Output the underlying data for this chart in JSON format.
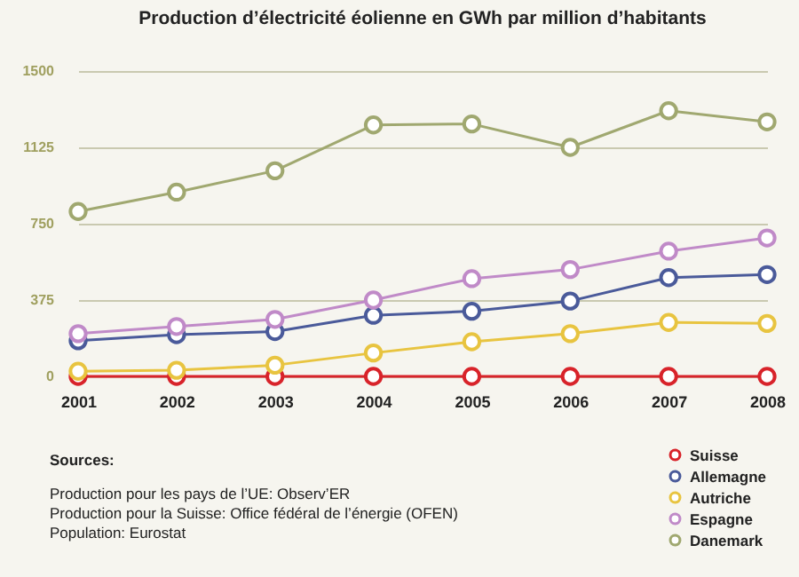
{
  "chart_data": {
    "type": "line",
    "title": "Production d’électricité éolienne en GWh par million d’habitants",
    "categories": [
      "2001",
      "2002",
      "2003",
      "2004",
      "2005",
      "2006",
      "2007",
      "2008"
    ],
    "series": [
      {
        "name": "Suisse",
        "color": "#d8232a",
        "values": [
          0,
          0,
          0,
          0,
          0,
          0,
          0,
          0
        ]
      },
      {
        "name": "Allemagne",
        "color": "#4a5a9a",
        "values": [
          175,
          205,
          220,
          300,
          320,
          370,
          485,
          500
        ]
      },
      {
        "name": "Autriche",
        "color": "#e8c440",
        "values": [
          25,
          30,
          55,
          115,
          170,
          210,
          265,
          260
        ]
      },
      {
        "name": "Espagne",
        "color": "#c08ac8",
        "values": [
          210,
          245,
          280,
          375,
          480,
          525,
          615,
          680
        ]
      },
      {
        "name": "Danemark",
        "color": "#a0a870",
        "values": [
          810,
          905,
          1010,
          1235,
          1240,
          1125,
          1305,
          1250
        ]
      }
    ],
    "ylim": [
      0,
      1500
    ],
    "yticks": [
      0,
      375,
      750,
      1125,
      1500
    ],
    "grid": "y",
    "legend": "bottom right",
    "marker": "circle",
    "annotations": [
      "Sources:",
      "Production pour les pays de l’UE: Observ’ER",
      "Production pour la Suisse: Office fédéral de l’énergie (OFEN)",
      "Population: Eurostat"
    ]
  }
}
